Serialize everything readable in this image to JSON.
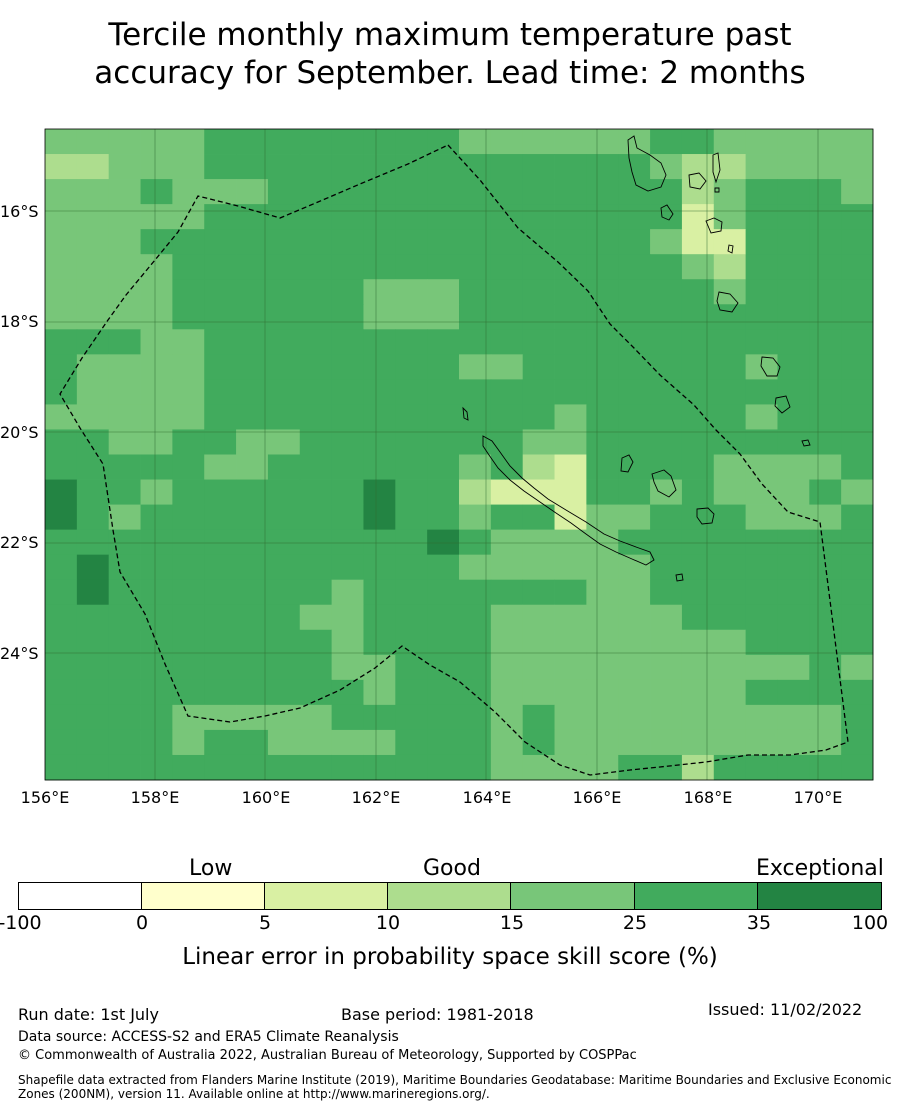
{
  "title": {
    "line1": "Tercile monthly maximum temperature past",
    "line2": "accuracy for September. Lead time: 2 months"
  },
  "map": {
    "lat_labels": [
      "16°S",
      "18°S",
      "20°S",
      "22°S",
      "24°S"
    ],
    "lon_labels": [
      "156°E",
      "158°E",
      "160°E",
      "162°E",
      "164°E",
      "166°E",
      "168°E",
      "170°E"
    ]
  },
  "colorbar": {
    "categories": [
      "Low",
      "Good",
      "Exceptional"
    ],
    "ticks": [
      "-100",
      "0",
      "5",
      "10",
      "15",
      "25",
      "35",
      "100"
    ],
    "colors": [
      "#ffffff",
      "#ffffcc",
      "#d9f0a3",
      "#addd8e",
      "#78c679",
      "#41ab5d",
      "#238443"
    ],
    "label": "Linear error in probability space skill score (%)"
  },
  "footer": {
    "run_date": "Run date: 1st July",
    "base_period": "Base period: 1981-2018",
    "issued": "Issued: 11/02/2022",
    "data_source": "Data source: ACCESS-S2 and ERA5 Climate Reanalysis",
    "copyright": "© Commonwealth of Australia 2022, Australian Bureau of Meteorology, Supported by COSPPac",
    "shapefile": "Shapefile data extracted from Flanders Marine Institute (2019), Maritime Boundaries Geodatabase: Maritime Boundaries and Exclusive Economic Zones (200NM), version 11. Available online at http://www.marineregions.org/."
  },
  "grid_levels": [
    "44444555555554444445544444",
    "33444555555555555554334444",
    "44454445555555555555345554",
    "44444555555555555555245555",
    "44455555555555555554225555",
    "44445555555555555555435555",
    "44445555554445555555545555",
    "44445555554445555555555555",
    "55544555555555555555555555",
    "54444555555554455555554555",
    "54444555555555555555555555",
    "44444555555555554555554555",
    "55445544555555544555555555",
    "55555445555554532555544445",
    "65545555556553222554544454",
    "65455555556554552445554445",
    "55555555555565444455555555",
    "56555555555554444445555555",
    "56555555545555555445555555",
    "55555555445555444444555555",
    "55555555545555444444445555",
    "55555555544555444444444454",
    "55555555554555444444445555",
    "55554444455555454444444445",
    "55554554444555454444444445",
    "55555555555555444455355555"
  ]
}
